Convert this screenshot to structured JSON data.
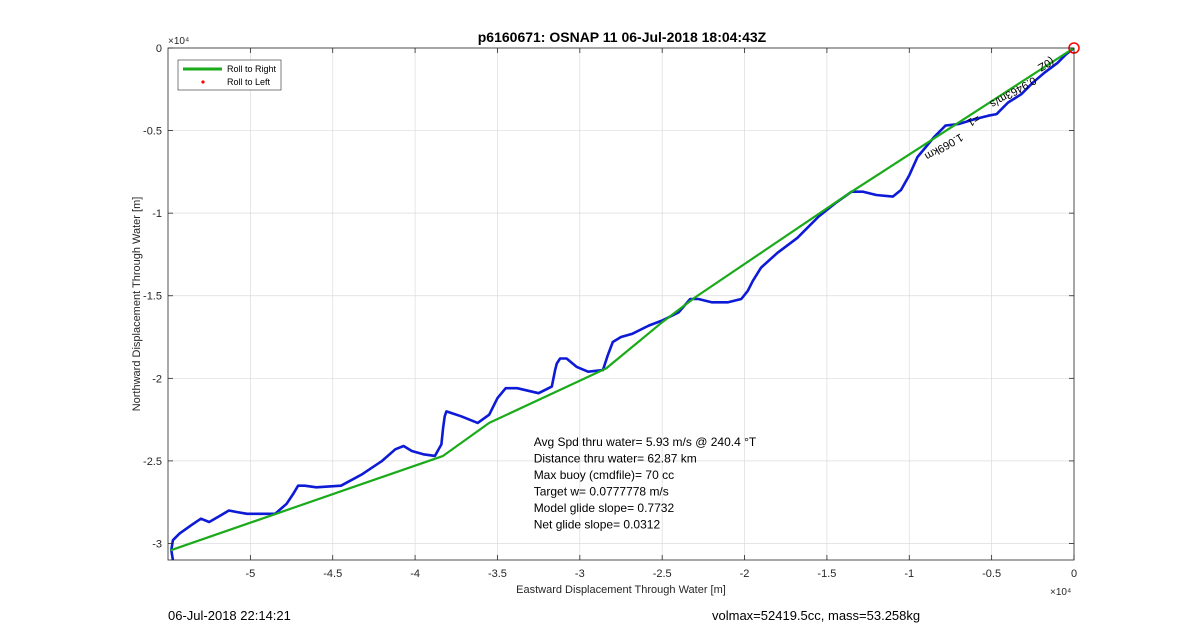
{
  "colors": {
    "roll_right": "#1aaa1a",
    "roll_left": "#ff0000",
    "track": "#0d1ad6",
    "grid": "#dcdcdc"
  },
  "footer": {
    "left": "06-Jul-2018 22:14:21",
    "right": "volmax=52419.5cc, mass=53.258kg"
  },
  "chart_data": {
    "type": "line",
    "title": "p6160671: OSNAP 11 06-Jul-2018 18:04:43Z",
    "xlabel": "Eastward Displacement Through Water [m]",
    "ylabel": "Northward Displacement Through Water [m]",
    "x_multiplier_label": "×10⁴",
    "y_multiplier_label": "×10⁴",
    "xlim": [
      -5.5,
      0
    ],
    "ylim": [
      -3.1,
      0
    ],
    "xticks": [
      -5,
      -4.5,
      -4,
      -3.5,
      -3,
      -2.5,
      -2,
      -1.5,
      -1,
      -0.5,
      0
    ],
    "yticks": [
      -3,
      -2.5,
      -2,
      -1.5,
      -1,
      -0.5,
      0
    ],
    "grid": true,
    "legend": {
      "position": "top-left",
      "entries": [
        {
          "label": "Roll to Right",
          "style": "line",
          "color": "#1aaa1a"
        },
        {
          "label": "Roll to Left",
          "style": "dot",
          "color": "#ff0000"
        }
      ]
    },
    "series": [
      {
        "name": "Roll to Right",
        "color": "#1aaa1a",
        "x": [
          -5.48,
          -3.83,
          -3.55,
          -2.84,
          -2.5,
          -2.3,
          -1.35,
          0
        ],
        "y": [
          -3.04,
          -2.47,
          -2.27,
          -1.94,
          -1.66,
          -1.51,
          -0.87,
          0
        ]
      },
      {
        "name": "",
        "color": "#0d1ad6",
        "x": [
          -5.47,
          -5.48,
          -5.47,
          -5.43,
          -5.36,
          -5.3,
          -5.25,
          -5.18,
          -5.13,
          -5.08,
          -5.02,
          -4.95,
          -4.85,
          -4.78,
          -4.74,
          -4.71,
          -4.67,
          -4.6,
          -4.45,
          -4.32,
          -4.2,
          -4.12,
          -4.07,
          -4.02,
          -3.95,
          -3.88,
          -3.84,
          -3.83,
          -3.82,
          -3.81,
          -3.78,
          -3.72,
          -3.62,
          -3.55,
          -3.5,
          -3.45,
          -3.38,
          -3.25,
          -3.17,
          -3.15,
          -3.14,
          -3.12,
          -3.08,
          -3.02,
          -2.95,
          -2.86,
          -2.83,
          -2.8,
          -2.75,
          -2.68,
          -2.58,
          -2.5,
          -2.4,
          -2.33,
          -2.28,
          -2.2,
          -2.1,
          -2.02,
          -1.98,
          -1.95,
          -1.9,
          -1.8,
          -1.68,
          -1.55,
          -1.45,
          -1.35,
          -1.28,
          -1.2,
          -1.1,
          -1.05,
          -1.0,
          -0.95,
          -0.85,
          -0.78,
          -0.7,
          -0.6,
          -0.52,
          -0.47,
          -0.4,
          -0.32,
          -0.25,
          -0.18,
          -0.1,
          -0.05,
          0
        ],
        "y": [
          -3.1,
          -3.04,
          -2.98,
          -2.94,
          -2.89,
          -2.85,
          -2.87,
          -2.83,
          -2.8,
          -2.81,
          -2.82,
          -2.82,
          -2.82,
          -2.76,
          -2.7,
          -2.65,
          -2.65,
          -2.66,
          -2.65,
          -2.58,
          -2.5,
          -2.43,
          -2.41,
          -2.44,
          -2.46,
          -2.47,
          -2.4,
          -2.3,
          -2.23,
          -2.2,
          -2.21,
          -2.23,
          -2.27,
          -2.22,
          -2.12,
          -2.06,
          -2.06,
          -2.09,
          -2.05,
          -1.95,
          -1.91,
          -1.88,
          -1.88,
          -1.93,
          -1.96,
          -1.95,
          -1.86,
          -1.78,
          -1.75,
          -1.73,
          -1.68,
          -1.65,
          -1.6,
          -1.52,
          -1.52,
          -1.54,
          -1.54,
          -1.52,
          -1.47,
          -1.41,
          -1.33,
          -1.24,
          -1.15,
          -1.02,
          -0.94,
          -0.87,
          -0.87,
          -0.89,
          -0.9,
          -0.86,
          -0.77,
          -0.66,
          -0.54,
          -0.47,
          -0.46,
          -0.43,
          -0.41,
          -0.4,
          -0.33,
          -0.28,
          -0.21,
          -0.15,
          -0.09,
          -0.04,
          0
        ]
      }
    ],
    "annotations": [
      {
        "text": "Avg Spd thru water=  5.93 m/s @ 240.4 °T",
        "x": -3.28,
        "y": -2.41
      },
      {
        "text": "Distance thru water= 62.87 km",
        "x": -3.28,
        "y": -2.51
      },
      {
        "text": "Max buoy (cmdfile)= 70 cc",
        "x": -3.28,
        "y": -2.61
      },
      {
        "text": "Target w= 0.0777778 m/s",
        "x": -3.28,
        "y": -2.71
      },
      {
        "text": "Model glide slope= 0.7732",
        "x": -3.28,
        "y": -2.81
      },
      {
        "text": "Net glide slope= 0.0312",
        "x": -3.28,
        "y": -2.91
      },
      {
        "text": "1.069km",
        "x": -0.8,
        "y": -0.58,
        "rotated": true
      },
      {
        "text": "=1",
        "x": -0.62,
        "y": -0.42,
        "rotated": true
      },
      {
        "text": "0.9463m/s",
        "x": -0.38,
        "y": -0.25,
        "rotated": true
      },
      {
        "text": "(0Z",
        "x": -0.18,
        "y": -0.08,
        "rotated": true
      }
    ]
  }
}
